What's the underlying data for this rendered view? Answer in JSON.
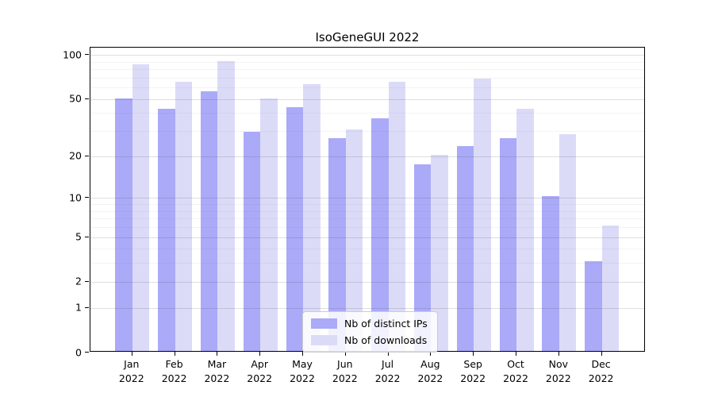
{
  "title": "IsoGeneGUI 2022",
  "chart_data": {
    "type": "bar",
    "title": "IsoGeneGUI 2022",
    "categories": [
      "Jan 2022",
      "Feb 2022",
      "Mar 2022",
      "Apr 2022",
      "May 2022",
      "Jun 2022",
      "Jul 2022",
      "Aug 2022",
      "Sep 2022",
      "Oct 2022",
      "Nov 2022",
      "Dec 2022"
    ],
    "series": [
      {
        "name": "Nb of distinct IPs",
        "color": "#aaaaf8",
        "values": [
          49,
          42,
          55,
          29,
          43,
          26,
          36,
          17,
          23,
          26,
          10,
          3
        ]
      },
      {
        "name": "Nb of downloads",
        "color": "#dbdbf8",
        "values": [
          84,
          64,
          88,
          49,
          62,
          30,
          64,
          20,
          67,
          42,
          28,
          6
        ]
      }
    ],
    "xlabel": "",
    "ylabel": "",
    "y_axis": {
      "scale": "log1p",
      "major_ticks": [
        0,
        1,
        2,
        5,
        10,
        20,
        50,
        100
      ],
      "minor_ticks": [
        3,
        4,
        6,
        7,
        8,
        9,
        30,
        40,
        60,
        70,
        80,
        90
      ],
      "range_top": 112
    },
    "grid": true,
    "legend": {
      "position": "lower-center",
      "entries": [
        "Nb of distinct IPs",
        "Nb of downloads"
      ]
    }
  },
  "colors": {
    "bar_distinct_ips": "#aaaaf8",
    "bar_downloads": "#dbdbf8",
    "axis": "#000000",
    "grid_major": "#d4d4d4",
    "grid_minor": "#ececec",
    "legend_border": "#cccccc"
  }
}
